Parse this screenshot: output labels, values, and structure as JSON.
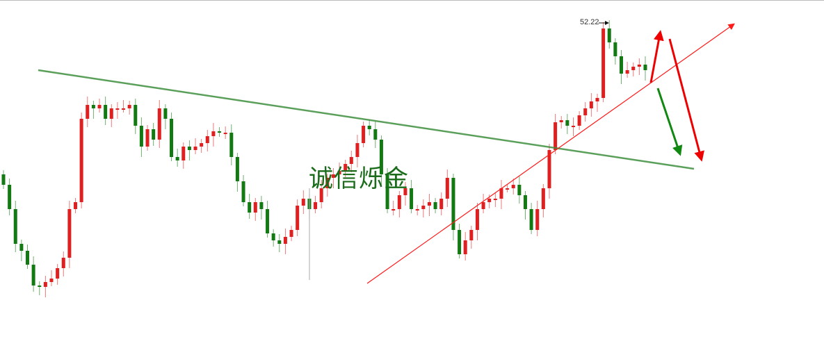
{
  "chart_data": {
    "type": "candlestick",
    "title": "",
    "xlabel": "",
    "ylabel": "",
    "up_color": "#e02020",
    "down_color": "#137a13",
    "high_label": "52.22",
    "watermark": "诚信烁金",
    "grid": false,
    "close": [
      47.58,
      46.88,
      45.88,
      45.68,
      45.28,
      44.68,
      44.64,
      44.78,
      44.88,
      45.18,
      45.48,
      46.88,
      47.08,
      49.48,
      49.88,
      49.78,
      49.88,
      49.48,
      49.78,
      49.78,
      49.78,
      49.88,
      49.28,
      48.68,
      49.18,
      48.88,
      49.78,
      49.48,
      48.38,
      48.28,
      48.68,
      48.58,
      48.68,
      48.78,
      48.98,
      49.12,
      49.08,
      49.08,
      48.38,
      47.68,
      47.08,
      46.78,
      47.08,
      46.88,
      46.18,
      45.98,
      45.88,
      46.08,
      46.28,
      46.98,
      47.18,
      46.88,
      47.08,
      47.48,
      47.78,
      47.88,
      47.98,
      48.18,
      48.38,
      48.78,
      49.28,
      49.18,
      48.88,
      47.88,
      46.88,
      46.88,
      47.28,
      47.48,
      46.88,
      46.88,
      46.98,
      47.08,
      46.88,
      47.18,
      47.78,
      46.28,
      45.58,
      45.98,
      46.28,
      46.88,
      47.08,
      47.18,
      47.18,
      47.48,
      47.48,
      47.58,
      47.28,
      46.88,
      46.28,
      46.88,
      47.48,
      48.58,
      49.38,
      49.44,
      49.28,
      49.28,
      49.58,
      49.78,
      49.98,
      50.08,
      52.08,
      51.68,
      51.28,
      50.78,
      50.88,
      50.98,
      51.04,
      50.88
    ],
    "annotations": {
      "resistance_line_color": "#3e8f3e",
      "support_line_color": "#ff1a1a",
      "arrows": [
        "red-up",
        "green-down",
        "red-down"
      ]
    }
  }
}
